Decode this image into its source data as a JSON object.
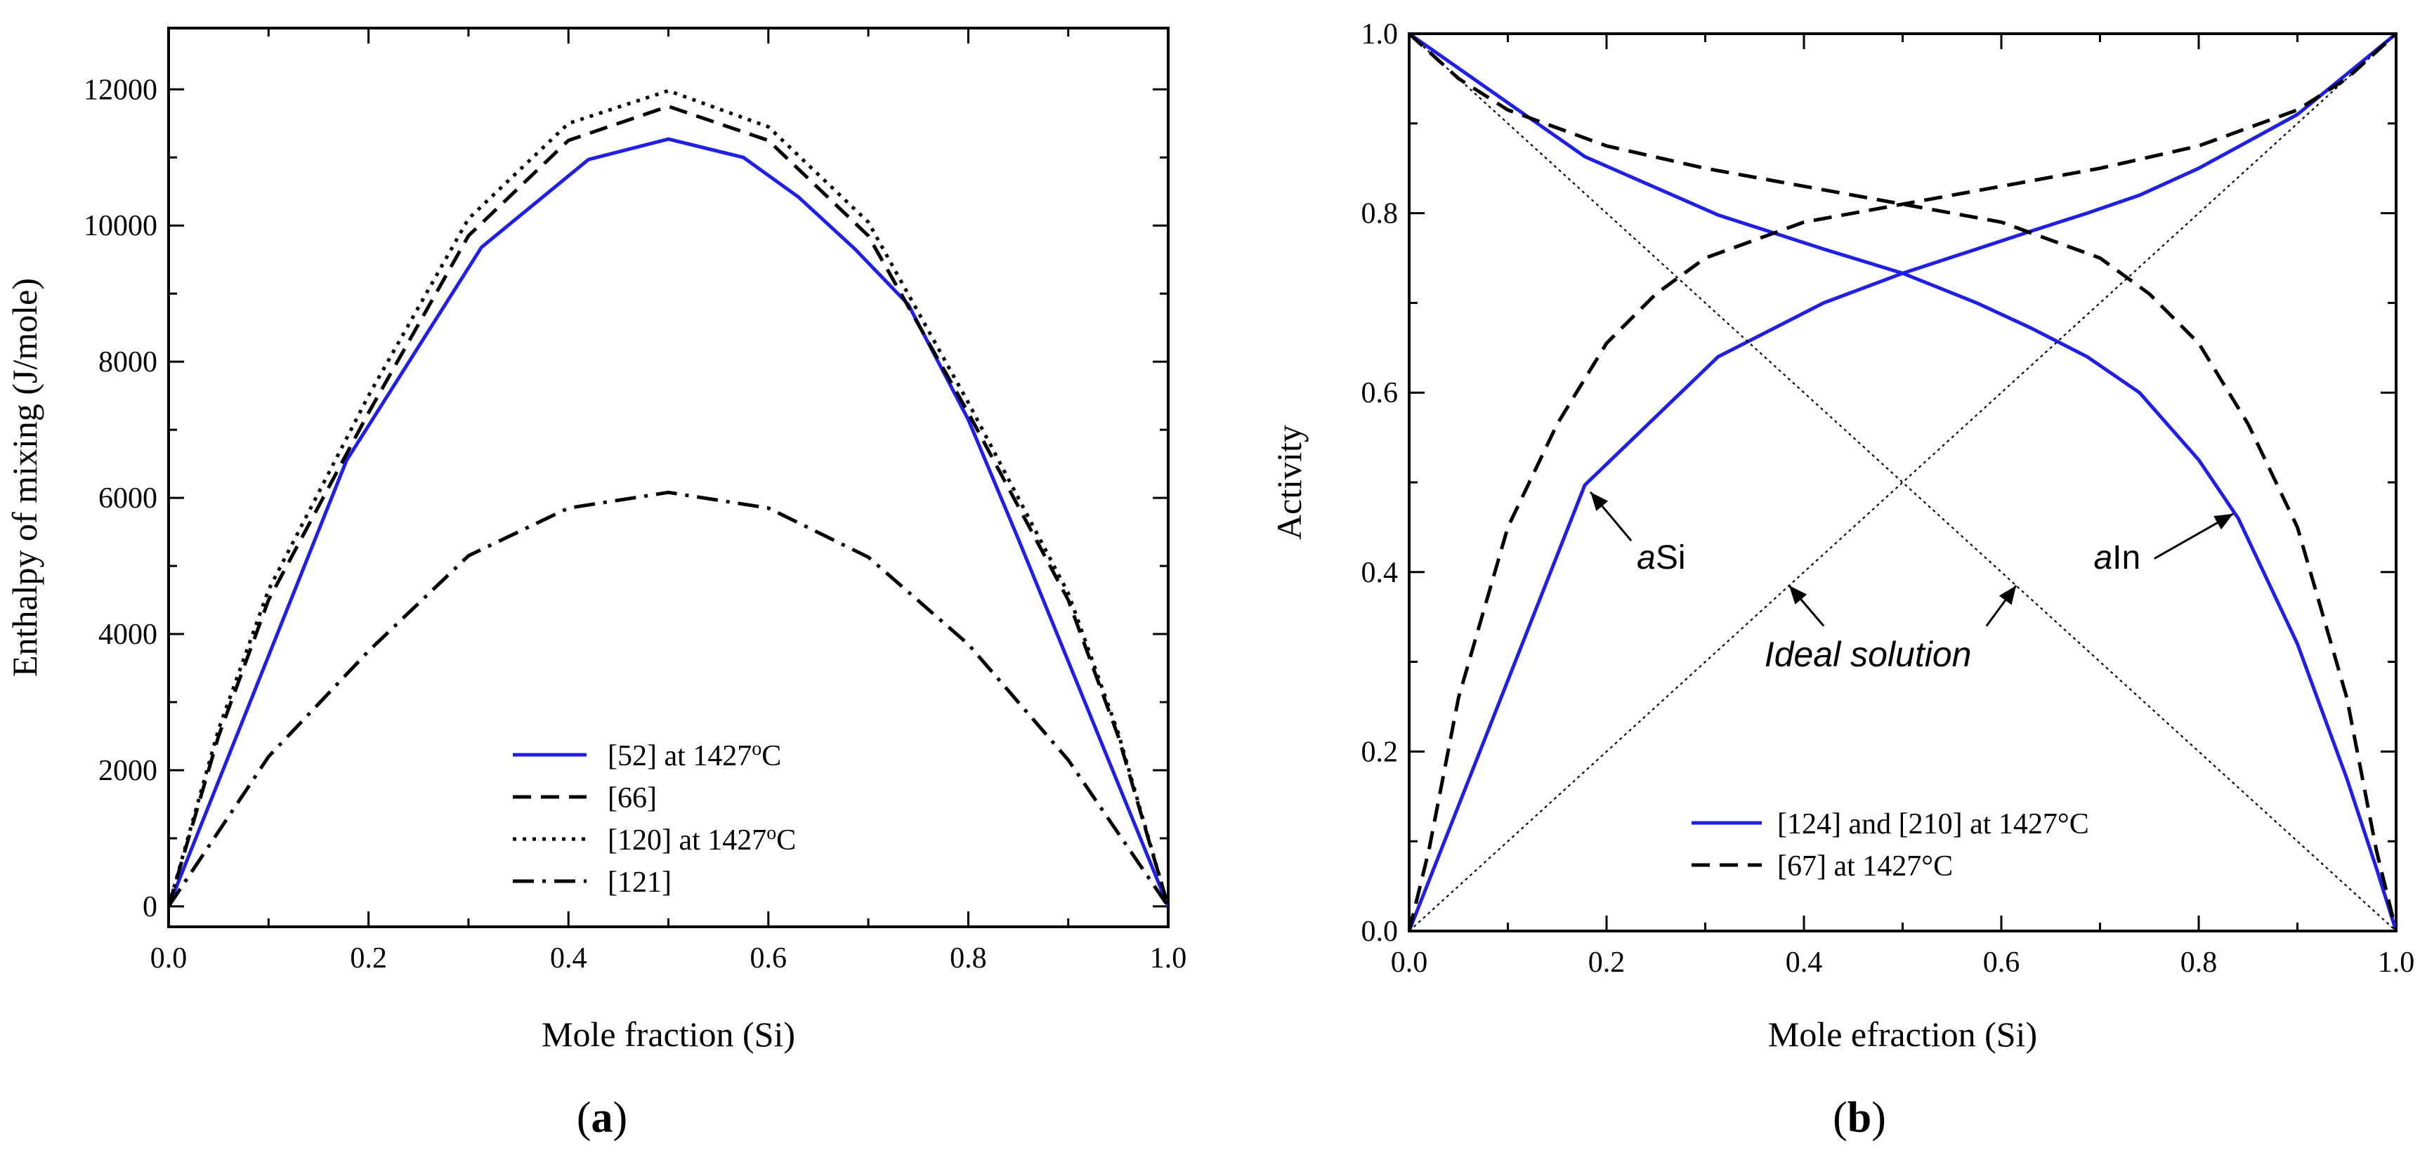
{
  "chart_data": [
    {
      "type": "line",
      "panel_label": "(a)",
      "panel_letter": "a",
      "xlabel": "Mole fraction (Si)",
      "ylabel": "Enthalpy of mixing (J/mole)",
      "xlim": [
        0,
        1.0
      ],
      "ylim": [
        -300,
        12900
      ],
      "x_ticks": [
        "0.0",
        "0.2",
        "0.4",
        "0.6",
        "0.8",
        "1.0"
      ],
      "x_tick_values": [
        0,
        0.2,
        0.4,
        0.6,
        0.8,
        1.0
      ],
      "y_ticks": [
        "0",
        "2000",
        "4000",
        "6000",
        "8000",
        "10000",
        "12000"
      ],
      "y_tick_values": [
        0,
        2000,
        4000,
        6000,
        8000,
        10000,
        12000
      ],
      "series": [
        {
          "name": "[52] at 1427°C",
          "legend_main": "[52] at 1427",
          "legend_sup": "o",
          "legend_end": "C",
          "style": "solid",
          "color": "#1f1fe8",
          "x": [
            0,
            0.178,
            0.313,
            0.42,
            0.5,
            0.575,
            0.63,
            0.687,
            0.74,
            0.8,
            0.85,
            0.9,
            0.95,
            1.0
          ],
          "y": [
            0,
            6550,
            9680,
            10970,
            11270,
            11000,
            10420,
            9650,
            8840,
            7150,
            5400,
            3600,
            1800,
            0
          ]
        },
        {
          "name": "[66]",
          "legend_main": "[66]",
          "legend_sup": "",
          "legend_end": "",
          "style": "dashed",
          "color": "#000000",
          "x": [
            0,
            0.05,
            0.1,
            0.2,
            0.3,
            0.4,
            0.5,
            0.6,
            0.7,
            0.8,
            0.9,
            0.95,
            1.0
          ],
          "y": [
            0,
            2500,
            4500,
            7250,
            9850,
            11250,
            11750,
            11250,
            9850,
            7250,
            4500,
            2500,
            0
          ]
        },
        {
          "name": "[120] at 1427°C",
          "legend_main": "[120] at 1427",
          "legend_sup": "o",
          "legend_end": "C",
          "style": "dotted",
          "color": "#000000",
          "x": [
            0,
            0.05,
            0.1,
            0.2,
            0.3,
            0.4,
            0.5,
            0.6,
            0.7,
            0.8,
            0.9,
            0.95,
            1.0
          ],
          "y": [
            0,
            2600,
            4650,
            7500,
            10100,
            11500,
            11980,
            11450,
            10050,
            7400,
            4600,
            2550,
            0
          ]
        },
        {
          "name": "[121]",
          "legend_main": "[121]",
          "legend_sup": "",
          "legend_end": "",
          "style": "dashdot",
          "color": "#000000",
          "x": [
            0,
            0.1,
            0.2,
            0.3,
            0.4,
            0.5,
            0.6,
            0.7,
            0.8,
            0.9,
            1.0
          ],
          "y": [
            0,
            2200,
            3750,
            5150,
            5850,
            6080,
            5850,
            5130,
            3850,
            2150,
            0
          ]
        }
      ],
      "legend_position": "bottom-center"
    },
    {
      "type": "line",
      "panel_label": "(b)",
      "panel_letter": "b",
      "xlabel": "Mole efraction (Si)",
      "ylabel": "Activity",
      "xlim": [
        0,
        1.0
      ],
      "ylim": [
        0,
        1.0
      ],
      "x_ticks": [
        "0.0",
        "0.2",
        "0.4",
        "0.6",
        "0.8",
        "1.0"
      ],
      "x_tick_values": [
        0,
        0.2,
        0.4,
        0.6,
        0.8,
        1.0
      ],
      "y_ticks": [
        "0.0",
        "0.2",
        "0.4",
        "0.6",
        "0.8",
        "1.0"
      ],
      "y_tick_values": [
        0,
        0.2,
        0.4,
        0.6,
        0.8,
        1.0
      ],
      "series": [
        {
          "name": "[124] and [210] at 1427°C",
          "style": "solid",
          "color": "#1f1fe8",
          "curves": [
            {
              "label": "aSi",
              "x": [
                0,
                0.178,
                0.313,
                0.42,
                0.5,
                0.575,
                0.63,
                0.687,
                0.74,
                0.8,
                0.85,
                0.9,
                0.95,
                1.0
              ],
              "y": [
                0,
                0.497,
                0.64,
                0.7,
                0.733,
                0.76,
                0.78,
                0.8,
                0.82,
                0.85,
                0.88,
                0.91,
                0.955,
                1.0
              ]
            },
            {
              "label": "aIn",
              "x": [
                0,
                0.178,
                0.313,
                0.42,
                0.5,
                0.575,
                0.63,
                0.687,
                0.74,
                0.8,
                0.84,
                0.9,
                0.95,
                0.98,
                1.0
              ],
              "y": [
                1.0,
                0.863,
                0.798,
                0.76,
                0.733,
                0.7,
                0.672,
                0.64,
                0.6,
                0.525,
                0.46,
                0.32,
                0.17,
                0.07,
                0
              ]
            }
          ]
        },
        {
          "name": "[67] at 1427°C",
          "style": "dashed",
          "color": "#000000",
          "curves": [
            {
              "label": "aSi",
              "x": [
                0,
                0.02,
                0.05,
                0.1,
                0.15,
                0.2,
                0.25,
                0.3,
                0.4,
                0.5,
                0.6,
                0.7,
                0.8,
                0.9,
                0.95,
                1.0
              ],
              "y": [
                0,
                0.09,
                0.26,
                0.45,
                0.565,
                0.655,
                0.71,
                0.75,
                0.79,
                0.81,
                0.83,
                0.85,
                0.875,
                0.915,
                0.95,
                1.0
              ]
            },
            {
              "label": "aIn",
              "x": [
                0,
                0.05,
                0.1,
                0.2,
                0.3,
                0.4,
                0.5,
                0.6,
                0.7,
                0.75,
                0.8,
                0.85,
                0.9,
                0.95,
                0.98,
                1.0
              ],
              "y": [
                1.0,
                0.95,
                0.915,
                0.875,
                0.85,
                0.83,
                0.81,
                0.79,
                0.75,
                0.71,
                0.655,
                0.565,
                0.45,
                0.26,
                0.09,
                0
              ]
            }
          ]
        },
        {
          "name": "Ideal solution",
          "style": "thin-dotted",
          "color": "#000000",
          "curves": [
            {
              "label": "ideal-aSi",
              "x": [
                0,
                1.0
              ],
              "y": [
                0,
                1.0
              ]
            },
            {
              "label": "ideal-aIn",
              "x": [
                0,
                1.0
              ],
              "y": [
                1.0,
                0
              ]
            }
          ]
        }
      ],
      "legend_entries": [
        {
          "main": "[124] and [210] at 1427°C",
          "style": "solid",
          "color": "#1f1fe8"
        },
        {
          "main": "[67] at 1427°C",
          "style": "dashed",
          "color": "#000000"
        }
      ],
      "annotations": [
        {
          "italic": "a",
          "normal": "Si",
          "at_x": 0.178,
          "at_y": 0.497,
          "text_x": 0.225,
          "text_y": 0.41
        },
        {
          "italic": "a",
          "normal": "In",
          "at_x": 0.835,
          "at_y": 0.465,
          "text_x": 0.69,
          "text_y": 0.41
        },
        {
          "italic": "Ideal solution",
          "normal": "",
          "at_x": 0.385,
          "at_y": 0.385,
          "at2_x": 0.615,
          "at2_y": 0.385,
          "text_x": 0.36,
          "text_y": 0.295
        }
      ],
      "legend_position": "bottom-center"
    }
  ]
}
